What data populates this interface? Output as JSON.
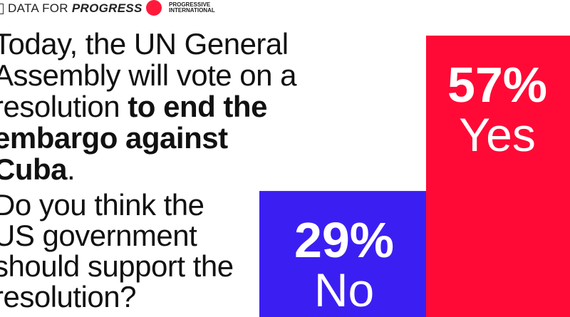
{
  "header": {
    "logo_left_regular": "DATA FOR ",
    "logo_left_bold": "PROGRESS",
    "logo_right_line1": "PROGRESSIVE",
    "logo_right_line2": "INTERNATIONAL"
  },
  "text": {
    "p1_regular": "Today, the UN General Assembly will vote on a resolution ",
    "p1_bold": "to end the embargo against Cuba",
    "p1_end": ".",
    "p2": "Do you think the US government should support the resolution?"
  },
  "colors": {
    "yes": "#ff0a36",
    "no": "#3b1ff2"
  },
  "chart_data": {
    "type": "bar",
    "categories": [
      "Yes",
      "No"
    ],
    "values": [
      57,
      29
    ],
    "value_labels": [
      "57%",
      "29%"
    ],
    "ylim": [
      0,
      100
    ]
  }
}
